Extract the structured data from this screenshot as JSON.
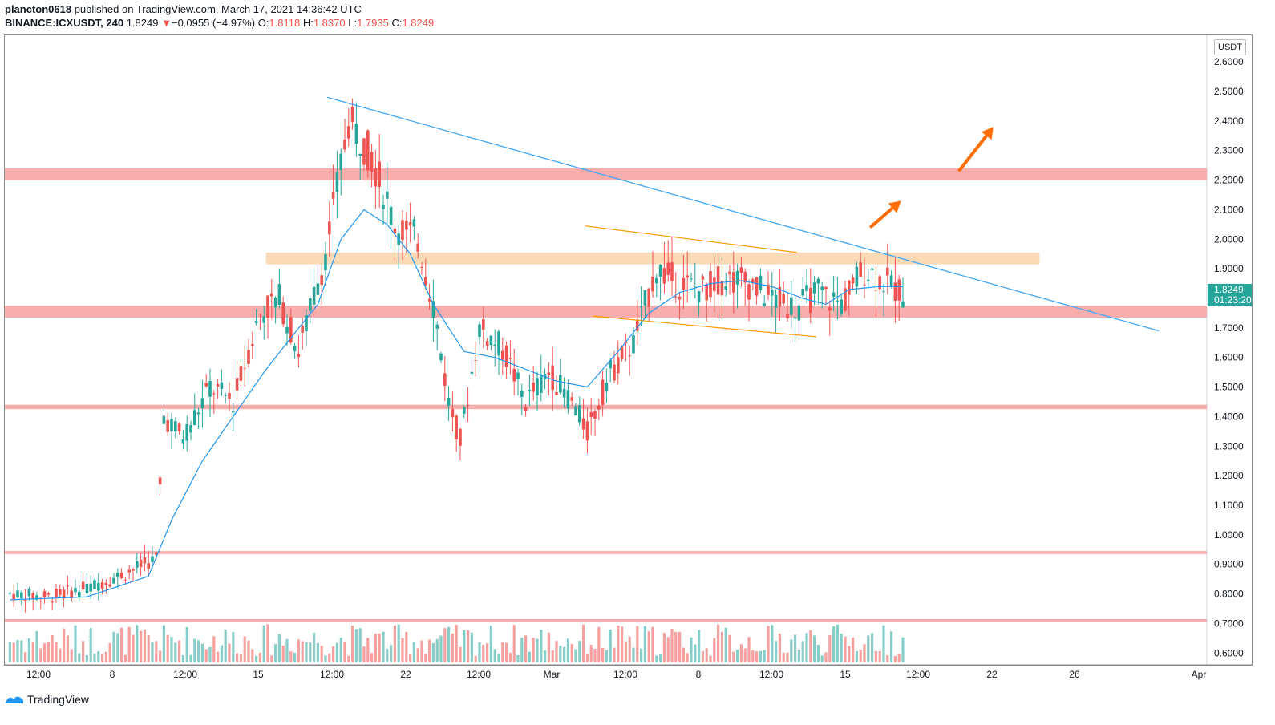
{
  "header": {
    "user": "plancton0618",
    "published": " published on TradingView.com, March 17, 2021 14:36:42 UTC",
    "symbol": "BINANCE:ICXUSDT, 240",
    "last": "1.8249",
    "change": "−0.0955 (−4.97%)",
    "o_label": "O:",
    "o": "1.8118",
    "h_label": "H:",
    "h": "1.8370",
    "l_label": "L:",
    "l": "1.7935",
    "c_label": "C:",
    "c": "1.8249"
  },
  "price_axis": {
    "currency": "USDT"
  },
  "price_tag": {
    "price": "1.8249",
    "countdown": "01:23:20"
  },
  "footer": {
    "brand": "TradingView"
  },
  "colors": {
    "up": "#26a69a",
    "down": "#ef5350",
    "ma": "#2196f3",
    "trend": "#42a5f5",
    "zone_red": "#f8a5a5",
    "zone_orange": "#fad1a6",
    "channel": "#ff9800",
    "arrow": "#ff6d00"
  },
  "chart_data": {
    "type": "candlestick",
    "y_ticks": [
      "2.6000",
      "2.5000",
      "2.4000",
      "2.3000",
      "2.2000",
      "2.1000",
      "2.0000",
      "1.9000",
      "1.7000",
      "1.6000",
      "1.5000",
      "1.4000",
      "1.3000",
      "1.2000",
      "1.1000",
      "1.0000",
      "0.9000",
      "0.8000",
      "0.7000",
      "0.6000"
    ],
    "x_ticks": [
      "12:00",
      "8",
      "12:00",
      "15",
      "12:00",
      "22",
      "12:00",
      "Mar",
      "12:00",
      "8",
      "12:00",
      "15",
      "12:00",
      "22",
      "26",
      "Apr"
    ],
    "ylim": [
      0.56,
      2.69
    ],
    "price_path": [
      [
        0,
        0.8
      ],
      [
        10,
        0.79
      ],
      [
        20,
        0.82
      ],
      [
        30,
        0.87
      ],
      [
        38,
        0.92
      ],
      [
        40,
        1.4
      ],
      [
        45,
        1.33
      ],
      [
        52,
        1.5
      ],
      [
        58,
        1.45
      ],
      [
        65,
        1.75
      ],
      [
        70,
        1.8
      ],
      [
        75,
        1.62
      ],
      [
        82,
        1.95
      ],
      [
        88,
        2.4
      ],
      [
        94,
        2.28
      ],
      [
        100,
        2.05
      ],
      [
        106,
        2.0
      ],
      [
        110,
        1.78
      ],
      [
        114,
        1.45
      ],
      [
        117,
        1.32
      ],
      [
        122,
        1.7
      ],
      [
        128,
        1.63
      ],
      [
        134,
        1.45
      ],
      [
        140,
        1.55
      ],
      [
        146,
        1.45
      ],
      [
        150,
        1.35
      ],
      [
        156,
        1.55
      ],
      [
        162,
        1.65
      ],
      [
        168,
        1.9
      ],
      [
        174,
        1.85
      ],
      [
        180,
        1.83
      ],
      [
        186,
        1.87
      ],
      [
        192,
        1.85
      ],
      [
        198,
        1.8
      ],
      [
        204,
        1.77
      ],
      [
        210,
        1.82
      ],
      [
        216,
        1.78
      ],
      [
        222,
        1.9
      ],
      [
        228,
        1.85
      ],
      [
        232,
        1.82
      ]
    ],
    "ma_path": [
      [
        0,
        0.78
      ],
      [
        20,
        0.79
      ],
      [
        36,
        0.86
      ],
      [
        42,
        1.05
      ],
      [
        50,
        1.25
      ],
      [
        58,
        1.4
      ],
      [
        66,
        1.55
      ],
      [
        72,
        1.65
      ],
      [
        80,
        1.78
      ],
      [
        86,
        2.0
      ],
      [
        92,
        2.1
      ],
      [
        98,
        2.05
      ],
      [
        104,
        1.95
      ],
      [
        110,
        1.78
      ],
      [
        118,
        1.62
      ],
      [
        126,
        1.6
      ],
      [
        134,
        1.56
      ],
      [
        142,
        1.52
      ],
      [
        150,
        1.5
      ],
      [
        158,
        1.62
      ],
      [
        166,
        1.75
      ],
      [
        174,
        1.82
      ],
      [
        182,
        1.85
      ],
      [
        190,
        1.86
      ],
      [
        198,
        1.84
      ],
      [
        206,
        1.8
      ],
      [
        212,
        1.78
      ],
      [
        218,
        1.83
      ],
      [
        226,
        1.84
      ],
      [
        232,
        1.84
      ]
    ],
    "n_bars": 233,
    "zones": [
      {
        "low": 2.2,
        "high": 2.24,
        "color": "red"
      },
      {
        "low": 1.915,
        "high": 1.955,
        "color": "orange"
      },
      {
        "low": 1.735,
        "high": 1.775,
        "color": "red"
      },
      {
        "low": 1.425,
        "high": 1.44,
        "color": "red"
      },
      {
        "low": 0.935,
        "high": 0.945,
        "color": "red"
      },
      {
        "low": 0.705,
        "high": 0.715,
        "color": "red"
      }
    ],
    "trendline": [
      [
        83,
        2.48
      ],
      [
        299,
        1.69
      ]
    ],
    "channel_upper": [
      [
        150,
        2.045
      ],
      [
        205,
        1.955
      ]
    ],
    "channel_lower": [
      [
        152,
        1.74
      ],
      [
        210,
        1.67
      ]
    ],
    "arrows": [
      [
        [
          224,
          2.04
        ],
        [
          232,
          2.13
        ]
      ],
      [
        [
          247,
          2.23
        ],
        [
          256,
          2.38
        ]
      ]
    ]
  }
}
